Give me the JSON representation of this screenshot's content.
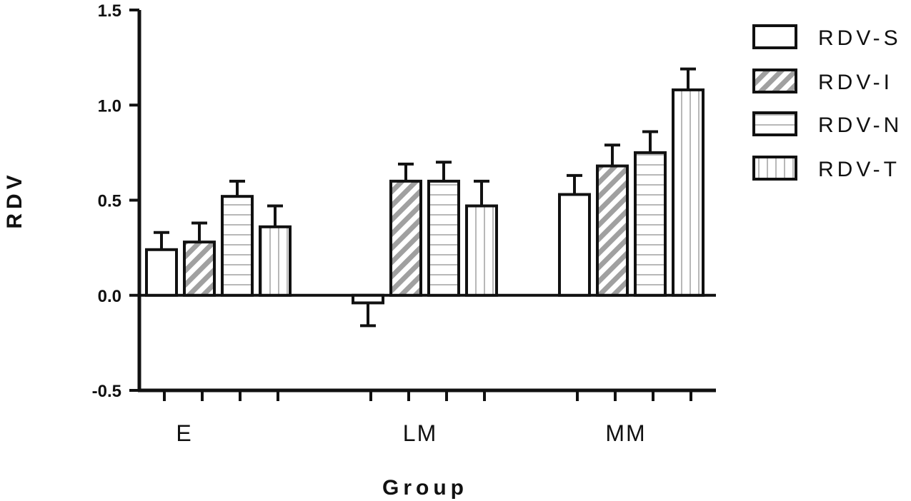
{
  "chart_data": {
    "type": "bar",
    "xlabel": "Group",
    "ylabel": "RDV",
    "ylim": [
      -0.5,
      1.5
    ],
    "yticks": [
      "-0.5",
      "0.0",
      "0.5",
      "1.0",
      "1.5"
    ],
    "ytick_values": [
      -0.5,
      0.0,
      0.5,
      1.0,
      1.5
    ],
    "categories": [
      "E",
      "LM",
      "MM"
    ],
    "legend_position": "right",
    "series": [
      {
        "name": "RDV-S",
        "pattern": "none",
        "values": [
          0.24,
          -0.04,
          0.53
        ],
        "errors": [
          0.09,
          0.12,
          0.1
        ]
      },
      {
        "name": "RDV-I",
        "pattern": "diagonal",
        "values": [
          0.28,
          0.6,
          0.68
        ],
        "errors": [
          0.1,
          0.09,
          0.11
        ]
      },
      {
        "name": "RDV-N",
        "pattern": "horizontal",
        "values": [
          0.52,
          0.6,
          0.75
        ],
        "errors": [
          0.08,
          0.1,
          0.11
        ]
      },
      {
        "name": "RDV-T",
        "pattern": "vertical",
        "values": [
          0.36,
          0.47,
          1.08
        ],
        "errors": [
          0.11,
          0.13,
          0.11
        ]
      }
    ],
    "colors": {
      "stroke": "#111111",
      "hatch": "#a0a0a0",
      "fill": "#ffffff"
    }
  }
}
